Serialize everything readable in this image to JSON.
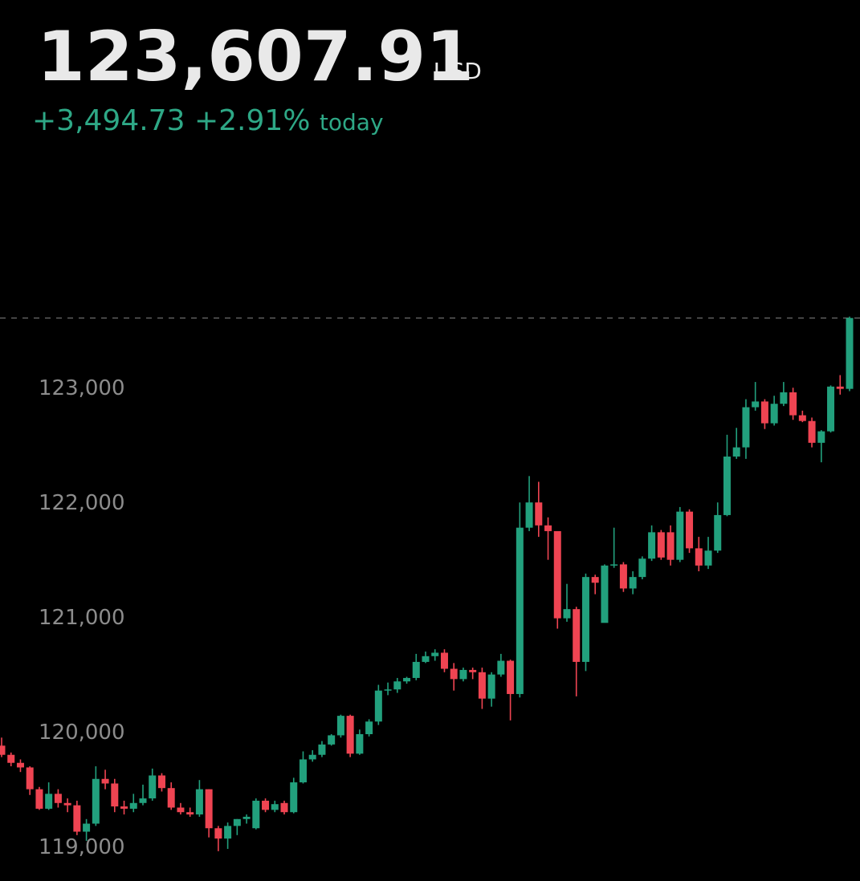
{
  "header": {
    "price": {
      "value": 123607.91,
      "label": "123,607.91"
    },
    "currency": "USD",
    "change": "+3,494.73",
    "change_pct": "+2.91%",
    "period": "today"
  },
  "chart_data": {
    "type": "candlestick",
    "up_color": "#22a07d",
    "down_color": "#ef4452",
    "ylim": [
      118700,
      126380
    ],
    "yticks": [
      {
        "value": 119000,
        "label": "119,000"
      },
      {
        "value": 120000,
        "label": "120,000"
      },
      {
        "value": 121000,
        "label": "121,000"
      },
      {
        "value": 122000,
        "label": "122,000"
      },
      {
        "value": 123000,
        "label": "123,000"
      }
    ],
    "open": [
      119880,
      119800,
      119730,
      119690,
      119500,
      119330,
      119460,
      119380,
      119360,
      119130,
      119200,
      119590,
      119550,
      119350,
      119330,
      119380,
      119420,
      119620,
      119510,
      119340,
      119300,
      119280,
      119500,
      119160,
      119070,
      119180,
      119240,
      119160,
      119400,
      119320,
      119380,
      119300,
      119560,
      119760,
      119800,
      119890,
      119970,
      120140,
      119810,
      119980,
      120090,
      120360,
      120370,
      120440,
      120470,
      120610,
      120660,
      120690,
      120550,
      120460,
      120540,
      120520,
      120290,
      120500,
      120620,
      120330,
      121780,
      122000,
      121800,
      121750,
      120990,
      121070,
      120610,
      121350,
      120950,
      121450,
      121460,
      121250,
      121350,
      121510,
      121740,
      121740,
      121500,
      121920,
      121600,
      121450,
      121580,
      121890,
      122400,
      122480,
      122830,
      122880,
      122690,
      122860,
      122960,
      122760,
      122710,
      122520,
      122620,
      123010,
      122990
    ],
    "high": [
      119950,
      119820,
      119760,
      119700,
      119520,
      119560,
      119500,
      119420,
      119400,
      119240,
      119700,
      119670,
      119590,
      119400,
      119460,
      119540,
      119680,
      119640,
      119560,
      119380,
      119340,
      119580,
      119500,
      119180,
      119210,
      119240,
      119280,
      119420,
      119420,
      119400,
      119400,
      119600,
      119830,
      119840,
      119920,
      119980,
      120150,
      120150,
      120020,
      120110,
      120410,
      120430,
      120470,
      120480,
      120680,
      120700,
      120720,
      120720,
      120600,
      120560,
      120560,
      120560,
      120520,
      120680,
      120630,
      122000,
      122230,
      122180,
      121870,
      121750,
      121290,
      121090,
      121380,
      121370,
      121460,
      121780,
      121480,
      121400,
      121530,
      121800,
      121760,
      121800,
      121960,
      121940,
      121700,
      121700,
      122000,
      122590,
      122650,
      122900,
      123050,
      122900,
      122930,
      123050,
      123000,
      122800,
      122740,
      122630,
      123020,
      123110,
      123620
    ],
    "low": [
      119780,
      119700,
      119650,
      119450,
      119320,
      119320,
      119340,
      119300,
      119100,
      119050,
      119180,
      119500,
      119300,
      119280,
      119300,
      119360,
      119400,
      119480,
      119320,
      119280,
      119260,
      119260,
      119080,
      118960,
      118980,
      119100,
      119200,
      119150,
      119300,
      119300,
      119280,
      119290,
      119550,
      119740,
      119780,
      119880,
      119950,
      119780,
      119800,
      119960,
      120060,
      120320,
      120340,
      120420,
      120450,
      120600,
      120620,
      120520,
      120360,
      120440,
      120460,
      120200,
      120220,
      120480,
      120100,
      120300,
      121750,
      121700,
      121500,
      120900,
      120960,
      120310,
      120530,
      121200,
      121000,
      121430,
      121220,
      121200,
      121330,
      121490,
      121500,
      121450,
      121480,
      121560,
      121400,
      121420,
      121560,
      121880,
      122380,
      122380,
      122800,
      122640,
      122670,
      122840,
      122720,
      122700,
      122480,
      122350,
      122610,
      122940,
      122970
    ],
    "close": [
      119800,
      119730,
      119690,
      119500,
      119330,
      119460,
      119380,
      119360,
      119130,
      119200,
      119590,
      119550,
      119350,
      119330,
      119380,
      119420,
      119620,
      119510,
      119340,
      119300,
      119280,
      119500,
      119160,
      119070,
      119180,
      119240,
      119260,
      119400,
      119320,
      119370,
      119300,
      119560,
      119760,
      119800,
      119890,
      119970,
      120140,
      119810,
      119980,
      120090,
      120360,
      120370,
      120440,
      120470,
      120610,
      120660,
      120690,
      120550,
      120460,
      120540,
      120520,
      120290,
      120500,
      120620,
      120330,
      121780,
      122000,
      121800,
      121750,
      120990,
      121070,
      120610,
      121350,
      121300,
      121450,
      121460,
      121250,
      121350,
      121510,
      121740,
      121520,
      121500,
      121920,
      121600,
      121450,
      121580,
      121890,
      122400,
      122480,
      122830,
      122880,
      122690,
      122860,
      122960,
      122760,
      122710,
      122520,
      122620,
      123010,
      122990,
      123608
    ]
  }
}
